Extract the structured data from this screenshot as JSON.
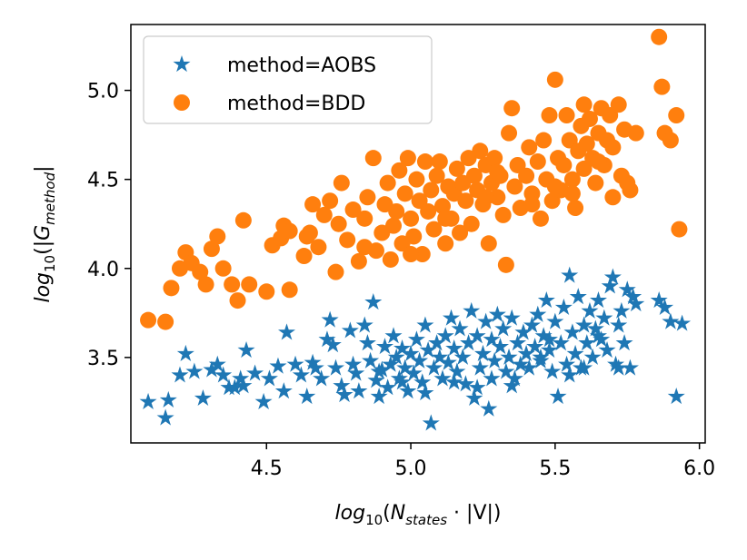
{
  "chart_data": {
    "type": "scatter",
    "title": "",
    "xlabel": {
      "base": "log",
      "sub": "10",
      "open": "(",
      "var": "N",
      "var_sub": "states",
      "mid": " · |V|)"
    },
    "ylabel": {
      "base": "log",
      "sub": "10",
      "open": "(|",
      "var": "G",
      "var_sub": "method",
      "close": "|"
    },
    "xlim": [
      4.03,
      6.02
    ],
    "ylim": [
      3.02,
      5.37
    ],
    "xticks": [
      4.5,
      5.0,
      5.5,
      6.0
    ],
    "xtick_labels": [
      "4.5",
      "5.0",
      "5.5",
      "6.0"
    ],
    "yticks": [
      3.5,
      4.0,
      4.5,
      5.0
    ],
    "ytick_labels": [
      "3.5",
      "4.0",
      "4.5",
      "5.0"
    ],
    "legend_position": "top-left",
    "series": [
      {
        "name": "method=AOBS",
        "marker": "star",
        "color": "#1f77b4",
        "points": [
          [
            4.09,
            3.25
          ],
          [
            4.15,
            3.16
          ],
          [
            4.16,
            3.26
          ],
          [
            4.2,
            3.4
          ],
          [
            4.22,
            3.52
          ],
          [
            4.25,
            3.42
          ],
          [
            4.28,
            3.27
          ],
          [
            4.31,
            3.43
          ],
          [
            4.33,
            3.46
          ],
          [
            4.35,
            3.4
          ],
          [
            4.37,
            3.33
          ],
          [
            4.39,
            3.33
          ],
          [
            4.41,
            3.38
          ],
          [
            4.42,
            3.34
          ],
          [
            4.43,
            3.54
          ],
          [
            4.46,
            3.41
          ],
          [
            4.49,
            3.25
          ],
          [
            4.51,
            3.38
          ],
          [
            4.54,
            3.45
          ],
          [
            4.56,
            3.31
          ],
          [
            4.57,
            3.64
          ],
          [
            4.6,
            3.46
          ],
          [
            4.62,
            3.4
          ],
          [
            4.64,
            3.28
          ],
          [
            4.66,
            3.47
          ],
          [
            4.67,
            3.44
          ],
          [
            4.69,
            3.38
          ],
          [
            4.71,
            3.6
          ],
          [
            4.72,
            3.71
          ],
          [
            4.73,
            3.57
          ],
          [
            4.74,
            3.44
          ],
          [
            4.76,
            3.34
          ],
          [
            4.77,
            3.29
          ],
          [
            4.79,
            3.65
          ],
          [
            4.8,
            3.46
          ],
          [
            4.81,
            3.41
          ],
          [
            4.82,
            3.31
          ],
          [
            4.84,
            3.68
          ],
          [
            4.85,
            3.58
          ],
          [
            4.86,
            3.48
          ],
          [
            4.87,
            3.81
          ],
          [
            4.88,
            3.37
          ],
          [
            4.89,
            3.28
          ],
          [
            4.9,
            3.43
          ],
          [
            4.91,
            3.56
          ],
          [
            4.92,
            3.33
          ],
          [
            4.93,
            3.46
          ],
          [
            4.94,
            3.62
          ],
          [
            4.95,
            3.5
          ],
          [
            4.96,
            3.38
          ],
          [
            4.97,
            3.55
          ],
          [
            4.98,
            3.44
          ],
          [
            4.99,
            3.31
          ],
          [
            5.0,
            3.52
          ],
          [
            5.01,
            3.41
          ],
          [
            5.02,
            3.6
          ],
          [
            5.03,
            3.48
          ],
          [
            5.04,
            3.36
          ],
          [
            5.05,
            3.68
          ],
          [
            5.06,
            3.54
          ],
          [
            5.07,
            3.13
          ],
          [
            5.08,
            3.44
          ],
          [
            5.09,
            3.58
          ],
          [
            5.1,
            3.5
          ],
          [
            5.11,
            3.38
          ],
          [
            5.12,
            3.62
          ],
          [
            5.13,
            3.47
          ],
          [
            5.14,
            3.72
          ],
          [
            5.15,
            3.55
          ],
          [
            5.16,
            3.42
          ],
          [
            5.17,
            3.66
          ],
          [
            5.18,
            3.5
          ],
          [
            5.19,
            3.35
          ],
          [
            5.2,
            3.58
          ],
          [
            5.21,
            3.76
          ],
          [
            5.22,
            3.27
          ],
          [
            5.23,
            3.62
          ],
          [
            5.24,
            3.44
          ],
          [
            5.25,
            3.52
          ],
          [
            5.26,
            3.7
          ],
          [
            5.27,
            3.21
          ],
          [
            5.28,
            3.6
          ],
          [
            5.29,
            3.48
          ],
          [
            5.3,
            3.74
          ],
          [
            5.31,
            3.56
          ],
          [
            5.32,
            3.66
          ],
          [
            5.33,
            3.42
          ],
          [
            5.34,
            3.5
          ],
          [
            5.35,
            3.72
          ],
          [
            5.36,
            3.38
          ],
          [
            5.37,
            3.58
          ],
          [
            5.38,
            3.46
          ],
          [
            5.39,
            3.64
          ],
          [
            5.4,
            3.52
          ],
          [
            5.41,
            3.44
          ],
          [
            5.42,
            3.68
          ],
          [
            5.43,
            3.56
          ],
          [
            5.44,
            3.74
          ],
          [
            5.45,
            3.48
          ],
          [
            5.46,
            3.62
          ],
          [
            5.47,
            3.82
          ],
          [
            5.48,
            3.54
          ],
          [
            5.49,
            3.42
          ],
          [
            5.5,
            3.7
          ],
          [
            5.51,
            3.28
          ],
          [
            5.52,
            3.58
          ],
          [
            5.53,
            3.78
          ],
          [
            5.54,
            3.46
          ],
          [
            5.55,
            3.96
          ],
          [
            5.56,
            3.64
          ],
          [
            5.57,
            3.52
          ],
          [
            5.58,
            3.84
          ],
          [
            5.59,
            3.44
          ],
          [
            5.6,
            3.68
          ],
          [
            5.61,
            3.58
          ],
          [
            5.62,
            3.76
          ],
          [
            5.63,
            3.5
          ],
          [
            5.64,
            3.66
          ],
          [
            5.65,
            3.82
          ],
          [
            5.66,
            3.6
          ],
          [
            5.67,
            3.72
          ],
          [
            5.68,
            3.54
          ],
          [
            5.69,
            3.9
          ],
          [
            5.7,
            3.95
          ],
          [
            5.71,
            3.46
          ],
          [
            5.72,
            3.68
          ],
          [
            5.73,
            3.76
          ],
          [
            5.74,
            3.58
          ],
          [
            5.75,
            3.88
          ],
          [
            5.76,
            3.44
          ],
          [
            5.77,
            3.84
          ],
          [
            5.78,
            3.8
          ],
          [
            5.86,
            3.82
          ],
          [
            5.88,
            3.78
          ],
          [
            5.9,
            3.7
          ],
          [
            5.92,
            3.28
          ],
          [
            5.94,
            3.69
          ],
          [
            5.28,
            3.38
          ],
          [
            5.23,
            3.33
          ],
          [
            5.05,
            3.3
          ],
          [
            4.97,
            3.36
          ],
          [
            4.89,
            3.42
          ],
          [
            5.15,
            3.36
          ],
          [
            5.35,
            3.34
          ],
          [
            5.45,
            3.5
          ],
          [
            5.55,
            3.4
          ],
          [
            5.65,
            3.62
          ],
          [
            5.72,
            3.44
          ],
          [
            5.6,
            3.44
          ],
          [
            5.48,
            3.6
          ]
        ]
      },
      {
        "name": "method=BDD",
        "marker": "circle",
        "color": "#ff7f0e",
        "points": [
          [
            4.09,
            3.71
          ],
          [
            4.15,
            3.7
          ],
          [
            4.17,
            3.89
          ],
          [
            4.2,
            4.0
          ],
          [
            4.22,
            4.09
          ],
          [
            4.24,
            4.03
          ],
          [
            4.27,
            3.98
          ],
          [
            4.29,
            3.91
          ],
          [
            4.31,
            4.11
          ],
          [
            4.33,
            4.18
          ],
          [
            4.35,
            4.0
          ],
          [
            4.38,
            3.91
          ],
          [
            4.4,
            3.82
          ],
          [
            4.42,
            4.27
          ],
          [
            4.44,
            3.91
          ],
          [
            4.5,
            3.87
          ],
          [
            4.52,
            4.13
          ],
          [
            4.55,
            4.17
          ],
          [
            4.56,
            4.24
          ],
          [
            4.58,
            4.21
          ],
          [
            4.58,
            3.88
          ],
          [
            4.63,
            4.07
          ],
          [
            4.65,
            4.2
          ],
          [
            4.66,
            4.36
          ],
          [
            4.68,
            4.12
          ],
          [
            4.7,
            4.3
          ],
          [
            4.72,
            4.38
          ],
          [
            4.74,
            3.98
          ],
          [
            4.75,
            4.25
          ],
          [
            4.76,
            4.48
          ],
          [
            4.78,
            4.16
          ],
          [
            4.8,
            4.33
          ],
          [
            4.82,
            4.04
          ],
          [
            4.84,
            4.28
          ],
          [
            4.85,
            4.4
          ],
          [
            4.87,
            4.62
          ],
          [
            4.88,
            4.1
          ],
          [
            4.9,
            4.2
          ],
          [
            4.91,
            4.36
          ],
          [
            4.92,
            4.48
          ],
          [
            4.93,
            4.05
          ],
          [
            4.94,
            4.24
          ],
          [
            4.95,
            4.32
          ],
          [
            4.96,
            4.55
          ],
          [
            4.97,
            4.14
          ],
          [
            4.98,
            4.42
          ],
          [
            4.99,
            4.62
          ],
          [
            5.0,
            4.28
          ],
          [
            5.01,
            4.18
          ],
          [
            5.02,
            4.5
          ],
          [
            5.03,
            4.38
          ],
          [
            5.04,
            4.08
          ],
          [
            5.05,
            4.6
          ],
          [
            5.06,
            4.32
          ],
          [
            5.07,
            4.44
          ],
          [
            5.08,
            4.22
          ],
          [
            5.09,
            4.52
          ],
          [
            5.1,
            4.6
          ],
          [
            5.11,
            4.35
          ],
          [
            5.12,
            4.14
          ],
          [
            5.13,
            4.46
          ],
          [
            5.14,
            4.28
          ],
          [
            5.15,
            4.42
          ],
          [
            5.16,
            4.56
          ],
          [
            5.17,
            4.2
          ],
          [
            5.18,
            4.48
          ],
          [
            5.19,
            4.38
          ],
          [
            5.2,
            4.62
          ],
          [
            5.21,
            4.25
          ],
          [
            5.22,
            4.52
          ],
          [
            5.23,
            4.44
          ],
          [
            5.24,
            4.66
          ],
          [
            5.25,
            4.36
          ],
          [
            5.26,
            4.58
          ],
          [
            5.27,
            4.14
          ],
          [
            5.28,
            4.48
          ],
          [
            5.29,
            4.62
          ],
          [
            5.3,
            4.4
          ],
          [
            5.31,
            4.52
          ],
          [
            5.32,
            4.3
          ],
          [
            5.33,
            4.02
          ],
          [
            5.34,
            4.76
          ],
          [
            5.35,
            4.9
          ],
          [
            5.36,
            4.46
          ],
          [
            5.37,
            4.58
          ],
          [
            5.38,
            4.34
          ],
          [
            5.4,
            4.52
          ],
          [
            5.41,
            4.68
          ],
          [
            5.42,
            4.42
          ],
          [
            5.44,
            4.6
          ],
          [
            5.45,
            4.28
          ],
          [
            5.46,
            4.72
          ],
          [
            5.47,
            4.5
          ],
          [
            5.48,
            4.86
          ],
          [
            5.49,
            4.38
          ],
          [
            5.5,
            5.06
          ],
          [
            5.51,
            4.62
          ],
          [
            5.52,
            4.44
          ],
          [
            5.53,
            4.58
          ],
          [
            5.54,
            4.86
          ],
          [
            5.55,
            4.72
          ],
          [
            5.56,
            4.5
          ],
          [
            5.57,
            4.34
          ],
          [
            5.58,
            4.66
          ],
          [
            5.59,
            4.8
          ],
          [
            5.6,
            4.56
          ],
          [
            5.61,
            4.7
          ],
          [
            5.62,
            4.84
          ],
          [
            5.63,
            4.62
          ],
          [
            5.64,
            4.48
          ],
          [
            5.65,
            4.76
          ],
          [
            5.66,
            4.9
          ],
          [
            5.67,
            4.58
          ],
          [
            5.68,
            4.72
          ],
          [
            5.69,
            4.86
          ],
          [
            5.7,
            4.68
          ],
          [
            5.72,
            4.92
          ],
          [
            5.73,
            4.52
          ],
          [
            5.74,
            4.78
          ],
          [
            5.76,
            4.44
          ],
          [
            5.78,
            4.76
          ],
          [
            5.86,
            5.3
          ],
          [
            5.87,
            5.02
          ],
          [
            5.88,
            4.76
          ],
          [
            5.9,
            4.72
          ],
          [
            5.92,
            4.86
          ],
          [
            5.93,
            4.22
          ],
          [
            4.64,
            4.18
          ],
          [
            4.84,
            4.12
          ],
          [
            5.0,
            4.08
          ],
          [
            5.12,
            4.28
          ],
          [
            5.26,
            4.4
          ],
          [
            5.3,
            4.54
          ],
          [
            5.42,
            4.36
          ],
          [
            5.56,
            4.42
          ],
          [
            5.6,
            4.92
          ],
          [
            5.65,
            4.6
          ],
          [
            5.7,
            4.4
          ],
          [
            5.75,
            4.48
          ],
          [
            5.5,
            4.46
          ]
        ]
      }
    ]
  }
}
